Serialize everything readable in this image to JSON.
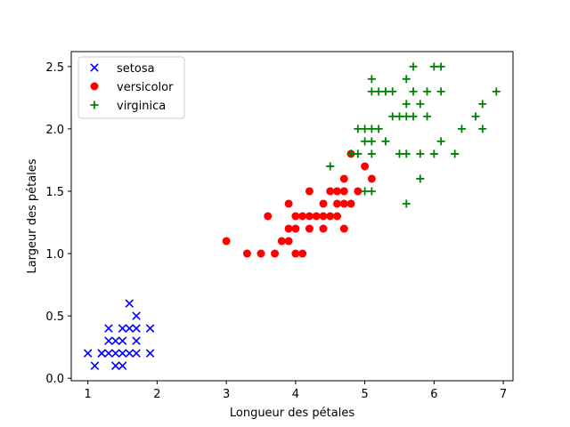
{
  "chart_data": {
    "type": "scatter",
    "title": "",
    "xlabel": "Longueur des pétales",
    "ylabel": "Largeur des pétales",
    "xlim": [
      0.76,
      7.14
    ],
    "ylim": [
      -0.02,
      2.62
    ],
    "xticks": [
      1,
      2,
      3,
      4,
      5,
      6,
      7
    ],
    "yticks": [
      0.0,
      0.5,
      1.0,
      1.5,
      2.0,
      2.5
    ],
    "xtick_labels": [
      "1",
      "2",
      "3",
      "4",
      "5",
      "6",
      "7"
    ],
    "ytick_labels": [
      "0.0",
      "0.5",
      "1.0",
      "1.5",
      "2.0",
      "2.5"
    ],
    "grid": false,
    "legend_position": "top-left",
    "series": [
      {
        "name": "setosa",
        "marker": "x",
        "color": "#0000ff",
        "points": [
          [
            1.0,
            0.2
          ],
          [
            1.1,
            0.1
          ],
          [
            1.2,
            0.2
          ],
          [
            1.2,
            0.2
          ],
          [
            1.3,
            0.2
          ],
          [
            1.3,
            0.3
          ],
          [
            1.3,
            0.4
          ],
          [
            1.4,
            0.1
          ],
          [
            1.4,
            0.2
          ],
          [
            1.4,
            0.3
          ],
          [
            1.5,
            0.1
          ],
          [
            1.5,
            0.2
          ],
          [
            1.5,
            0.3
          ],
          [
            1.5,
            0.4
          ],
          [
            1.6,
            0.2
          ],
          [
            1.6,
            0.4
          ],
          [
            1.6,
            0.6
          ],
          [
            1.7,
            0.2
          ],
          [
            1.7,
            0.3
          ],
          [
            1.7,
            0.4
          ],
          [
            1.7,
            0.5
          ],
          [
            1.9,
            0.2
          ],
          [
            1.9,
            0.4
          ]
        ]
      },
      {
        "name": "versicolor",
        "marker": "o",
        "color": "#ff0000",
        "points": [
          [
            3.0,
            1.1
          ],
          [
            3.3,
            1.0
          ],
          [
            3.5,
            1.0
          ],
          [
            3.6,
            1.3
          ],
          [
            3.7,
            1.0
          ],
          [
            3.8,
            1.1
          ],
          [
            3.9,
            1.1
          ],
          [
            3.9,
            1.2
          ],
          [
            3.9,
            1.4
          ],
          [
            4.0,
            1.0
          ],
          [
            4.0,
            1.2
          ],
          [
            4.0,
            1.3
          ],
          [
            4.1,
            1.0
          ],
          [
            4.1,
            1.3
          ],
          [
            4.2,
            1.2
          ],
          [
            4.2,
            1.3
          ],
          [
            4.2,
            1.5
          ],
          [
            4.3,
            1.3
          ],
          [
            4.4,
            1.2
          ],
          [
            4.4,
            1.3
          ],
          [
            4.4,
            1.4
          ],
          [
            4.5,
            1.3
          ],
          [
            4.5,
            1.5
          ],
          [
            4.6,
            1.3
          ],
          [
            4.6,
            1.4
          ],
          [
            4.6,
            1.5
          ],
          [
            4.7,
            1.2
          ],
          [
            4.7,
            1.4
          ],
          [
            4.7,
            1.5
          ],
          [
            4.7,
            1.6
          ],
          [
            4.8,
            1.4
          ],
          [
            4.8,
            1.8
          ],
          [
            4.9,
            1.5
          ],
          [
            5.0,
            1.7
          ],
          [
            5.1,
            1.6
          ]
        ]
      },
      {
        "name": "virginica",
        "marker": "+",
        "color": "#008000",
        "points": [
          [
            4.5,
            1.7
          ],
          [
            4.8,
            1.8
          ],
          [
            4.9,
            1.8
          ],
          [
            4.9,
            2.0
          ],
          [
            5.0,
            1.5
          ],
          [
            5.0,
            1.9
          ],
          [
            5.0,
            2.0
          ],
          [
            5.1,
            1.5
          ],
          [
            5.1,
            1.8
          ],
          [
            5.1,
            1.9
          ],
          [
            5.1,
            2.0
          ],
          [
            5.1,
            2.3
          ],
          [
            5.1,
            2.4
          ],
          [
            5.2,
            2.0
          ],
          [
            5.2,
            2.3
          ],
          [
            5.3,
            1.9
          ],
          [
            5.3,
            2.3
          ],
          [
            5.4,
            2.1
          ],
          [
            5.4,
            2.3
          ],
          [
            5.5,
            1.8
          ],
          [
            5.5,
            2.1
          ],
          [
            5.6,
            1.4
          ],
          [
            5.6,
            1.8
          ],
          [
            5.6,
            2.1
          ],
          [
            5.6,
            2.2
          ],
          [
            5.6,
            2.4
          ],
          [
            5.7,
            2.1
          ],
          [
            5.7,
            2.3
          ],
          [
            5.7,
            2.5
          ],
          [
            5.8,
            1.6
          ],
          [
            5.8,
            1.8
          ],
          [
            5.8,
            2.2
          ],
          [
            5.9,
            2.1
          ],
          [
            5.9,
            2.3
          ],
          [
            6.0,
            1.8
          ],
          [
            6.0,
            2.5
          ],
          [
            6.1,
            1.9
          ],
          [
            6.1,
            2.3
          ],
          [
            6.1,
            2.5
          ],
          [
            6.3,
            1.8
          ],
          [
            6.4,
            2.0
          ],
          [
            6.6,
            2.1
          ],
          [
            6.7,
            2.0
          ],
          [
            6.7,
            2.2
          ],
          [
            6.9,
            2.3
          ]
        ]
      }
    ]
  }
}
